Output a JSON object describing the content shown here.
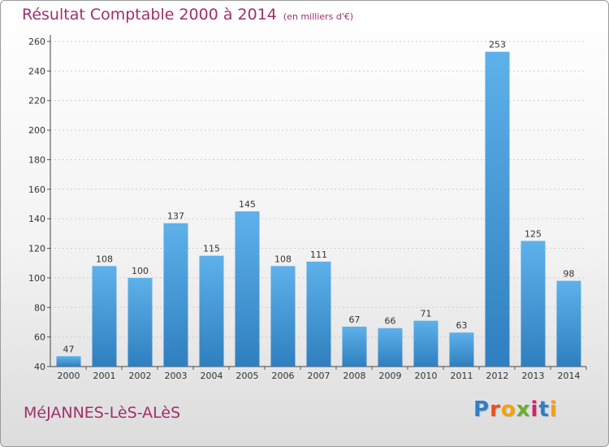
{
  "header": {
    "title": "Résultat Comptable 2000 à 2014",
    "subtitle": "(en milliers d'€)"
  },
  "footer": {
    "town": "MéJANNES-LèS-ALèS",
    "logo_letters": [
      "P",
      "r",
      "o",
      "x",
      "i",
      "t",
      "i"
    ]
  },
  "colors": {
    "bar_light": "#5eb1ea",
    "bar_dark": "#2f7fc0",
    "title": "#a0306a"
  },
  "chart_data": {
    "type": "bar",
    "title": "Résultat Comptable 2000 à 2014",
    "subtitle": "(en milliers d'€)",
    "categories": [
      "2000",
      "2001",
      "2002",
      "2003",
      "2004",
      "2005",
      "2006",
      "2007",
      "2008",
      "2009",
      "2010",
      "2011",
      "2012",
      "2013",
      "2014"
    ],
    "values": [
      47,
      108,
      100,
      137,
      115,
      145,
      108,
      111,
      67,
      66,
      71,
      63,
      253,
      125,
      98
    ],
    "ylim": [
      40,
      260
    ],
    "yticks": [
      40,
      60,
      80,
      100,
      120,
      140,
      160,
      180,
      200,
      220,
      240,
      260
    ],
    "grid": true,
    "xlabel": "",
    "ylabel": ""
  }
}
